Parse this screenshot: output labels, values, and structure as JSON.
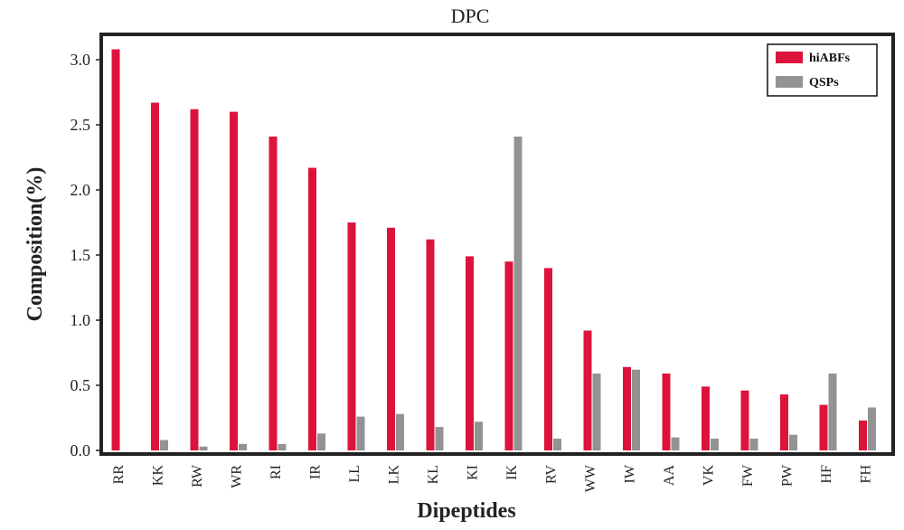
{
  "chart_data": {
    "type": "bar",
    "title": "DPC",
    "xlabel": "Dipeptides",
    "ylabel": "Composition(%)",
    "ylim": [
      0,
      3.25
    ],
    "yticks": [
      0.0,
      0.5,
      1.0,
      1.5,
      2.0,
      2.5,
      3.0
    ],
    "ytick_labels": [
      "0.0",
      "0.5",
      "1.0",
      "1.5",
      "2.0",
      "2.5",
      "3.0"
    ],
    "grid": false,
    "legend_position": "top-right",
    "categories": [
      "RR",
      "KK",
      "RW",
      "WR",
      "RI",
      "IR",
      "LL",
      "LK",
      "KL",
      "KI",
      "IK",
      "RV",
      "WW",
      "IW",
      "AA",
      "VK",
      "FW",
      "PW",
      "HF",
      "FH"
    ],
    "series": [
      {
        "name": "hiABFs",
        "color": "#DC143C",
        "values": [
          3.08,
          2.67,
          2.62,
          2.6,
          2.41,
          2.17,
          1.75,
          1.71,
          1.62,
          1.49,
          1.45,
          1.4,
          0.92,
          0.64,
          0.59,
          0.49,
          0.46,
          0.43,
          0.35,
          0.23
        ]
      },
      {
        "name": "QSPs",
        "color": "#939393",
        "values": [
          0.0,
          0.08,
          0.03,
          0.05,
          0.05,
          0.13,
          0.26,
          0.28,
          0.18,
          0.22,
          2.41,
          0.09,
          0.59,
          0.62,
          0.1,
          0.09,
          0.09,
          0.12,
          0.59,
          0.33
        ]
      }
    ]
  }
}
